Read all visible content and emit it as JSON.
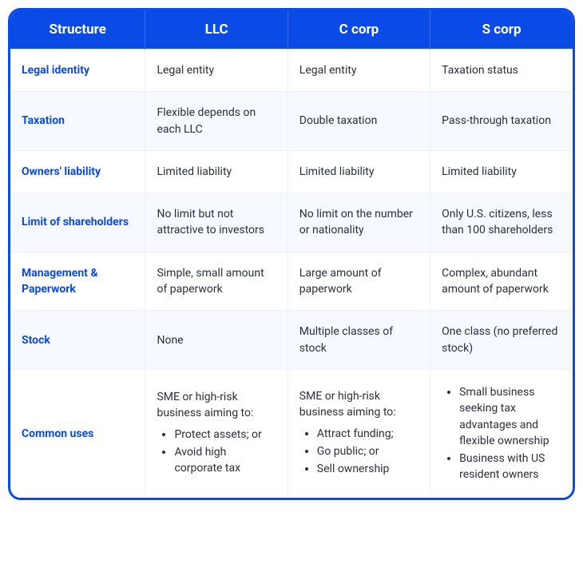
{
  "colors": {
    "header_bg": "#0a4ae6",
    "header_text": "#ffffff",
    "rowhead_text": "#0a4ae6",
    "body_text": "#2a2f3a",
    "row_alt_bg": "#f6f9ff",
    "row_bg": "#ffffff",
    "border": "#eef1f6"
  },
  "header": {
    "c0": "Structure",
    "c1": "LLC",
    "c2": "C corp",
    "c3": "S corp"
  },
  "rows": {
    "legal_identity": {
      "label": "Legal identity",
      "llc": "Legal entity",
      "ccorp": "Legal entity",
      "scorp": "Taxation status"
    },
    "taxation": {
      "label": "Taxation",
      "llc": "Flexible depends on each LLC",
      "ccorp": "Double taxation",
      "scorp": "Pass-through taxation"
    },
    "liability": {
      "label": "Owners' liability",
      "llc": "Limited liability",
      "ccorp": "Limited liability",
      "scorp": "Limited liability"
    },
    "limit_shareholders": {
      "label": "Limit of shareholders",
      "llc": "No limit but not attractive to investors",
      "ccorp": "No limit on the number or nationality",
      "scorp": "Only U.S. citizens, less than 100 shareholders"
    },
    "management": {
      "label": "Management & Paperwork",
      "llc": "Simple, small amount of paperwork",
      "ccorp": "Large amount of paperwork",
      "scorp": "Complex, abundant amount of paperwork"
    },
    "stock": {
      "label": "Stock",
      "llc": "None",
      "ccorp": "Multiple classes of stock",
      "scorp": "One class (no preferred stock)"
    },
    "common_uses": {
      "label": "Common uses",
      "llc_lead": "SME or high-risk business aiming to:",
      "llc_b1": "Protect assets; or",
      "llc_b2": "Avoid high corporate tax",
      "ccorp_lead": "SME or high-risk business aiming to:",
      "ccorp_b1": "Attract funding;",
      "ccorp_b2": "Go public; or",
      "ccorp_b3": "Sell ownership",
      "scorp_b1": "Small business seeking tax advantages and flexible ownership",
      "scorp_b2": "Business with US resident owners"
    }
  }
}
